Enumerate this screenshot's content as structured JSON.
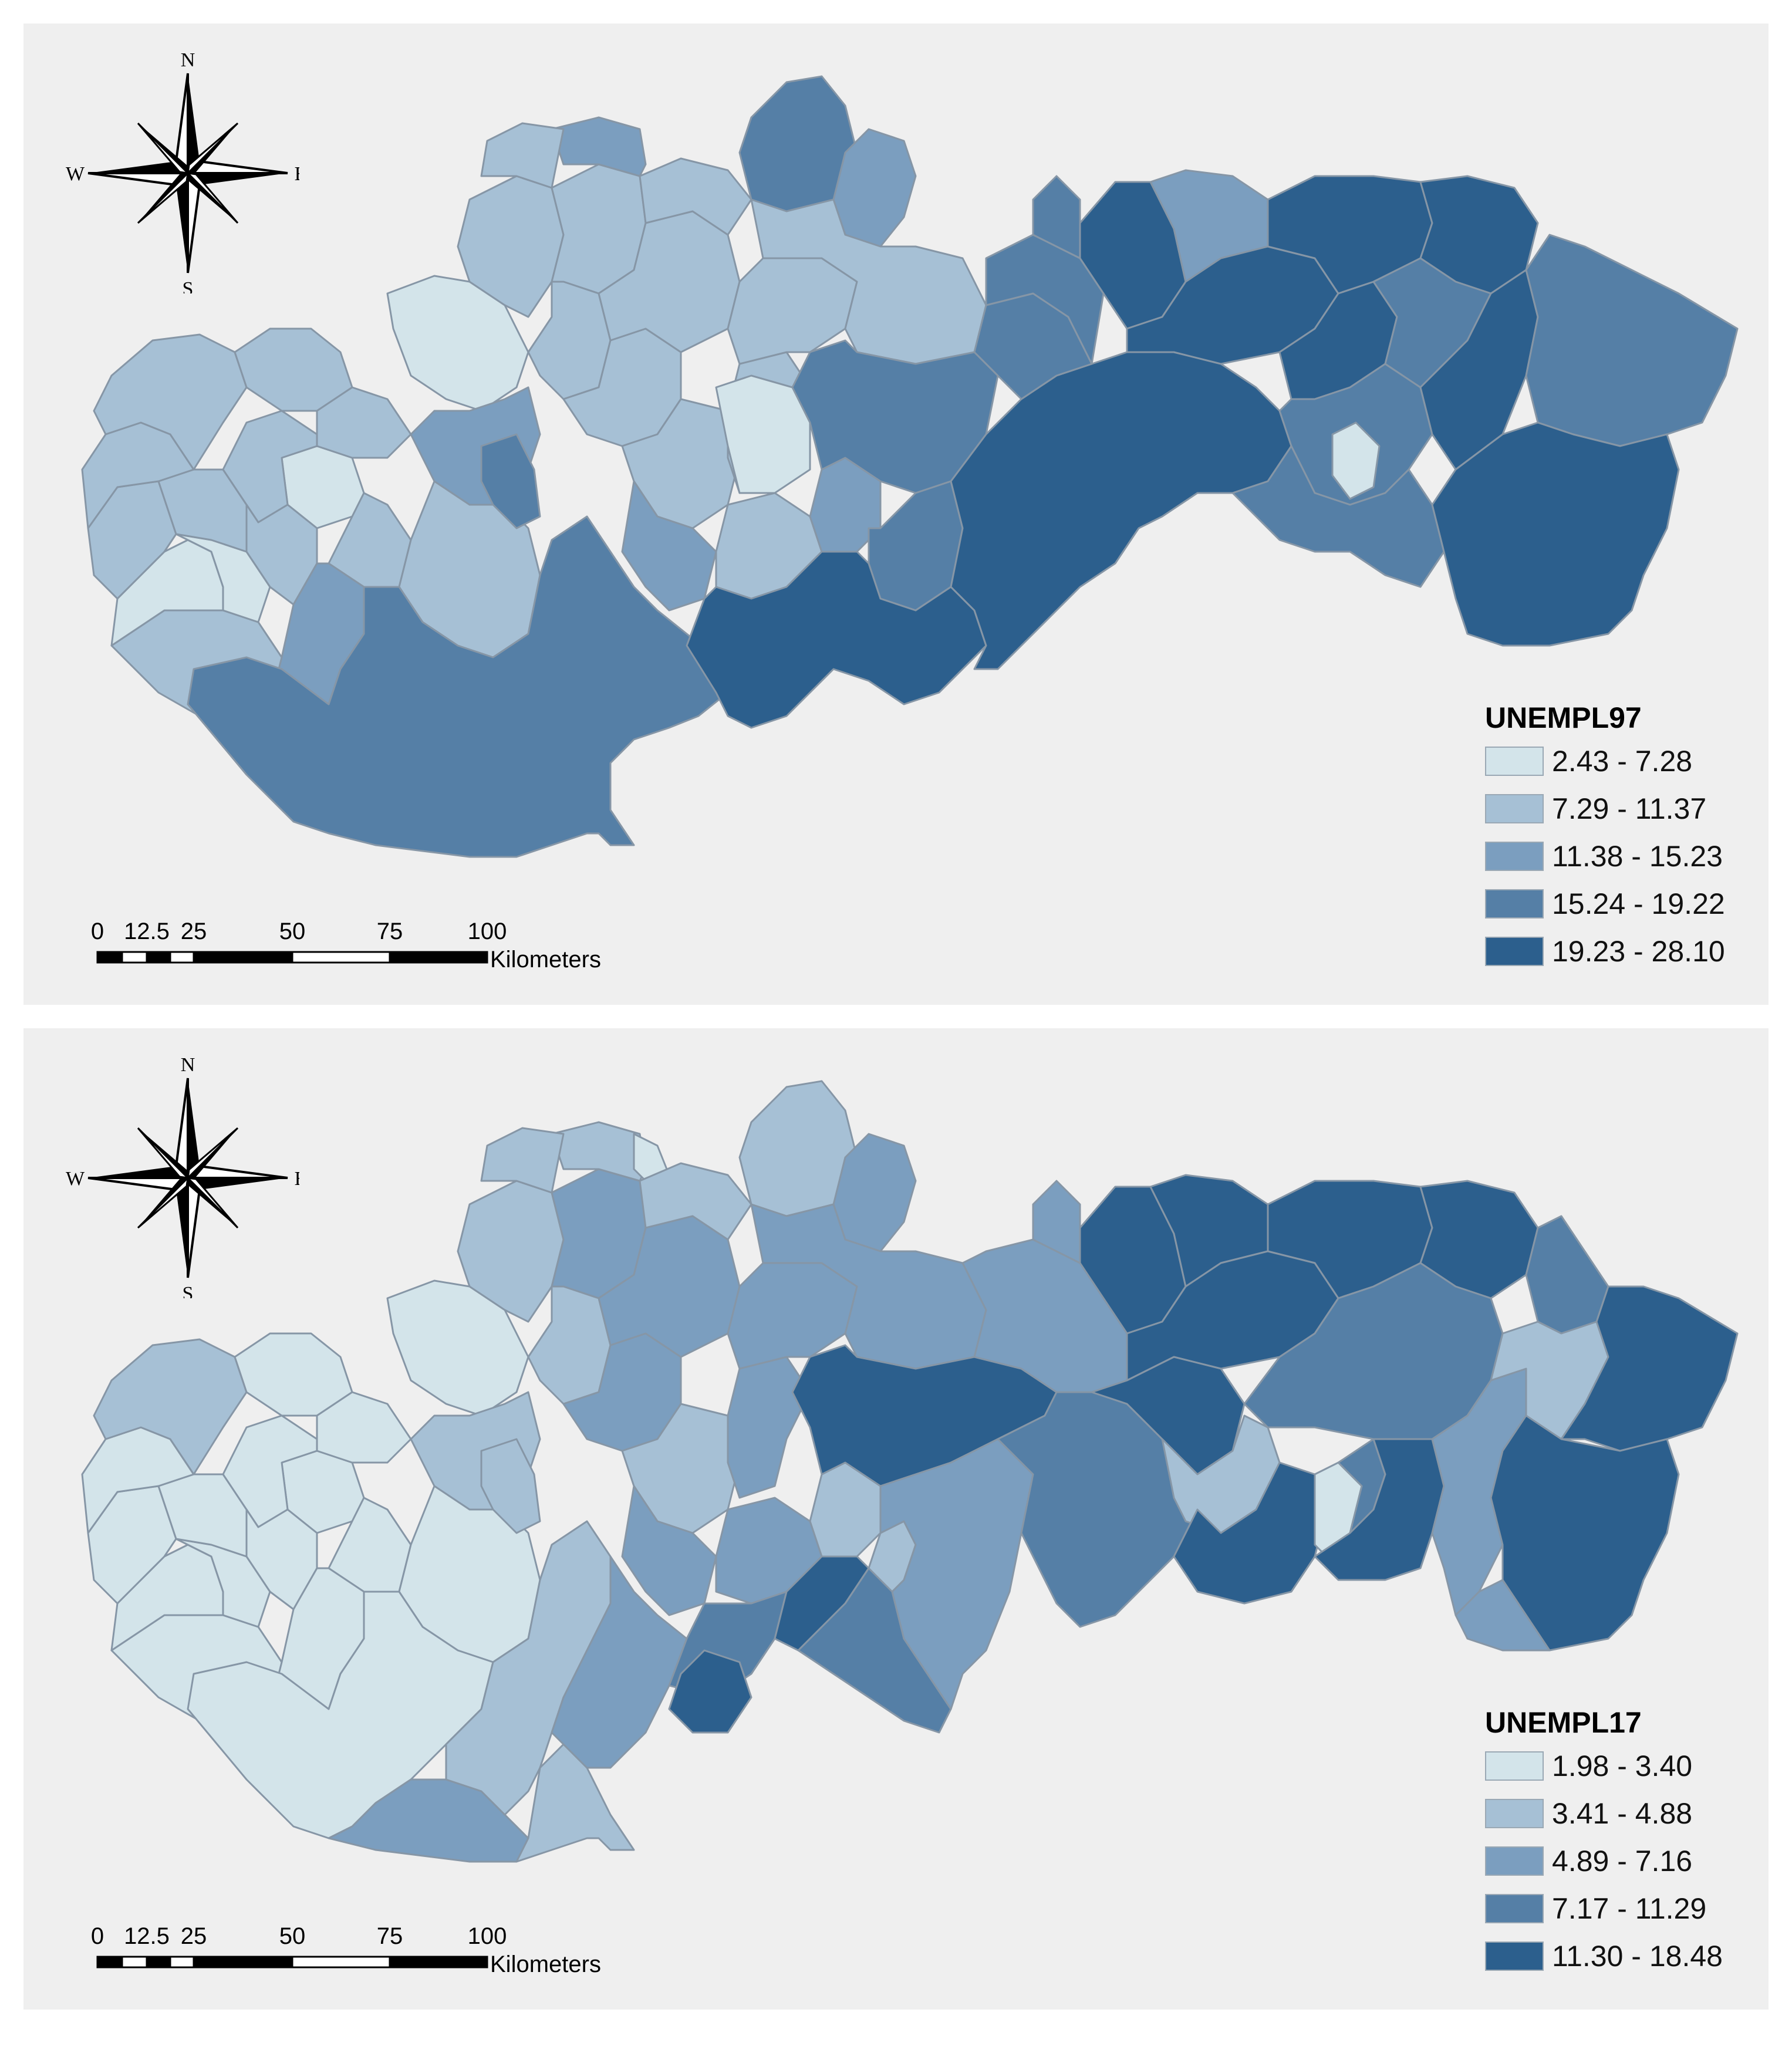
{
  "maps": [
    {
      "id": "unempl97",
      "legend": {
        "title": "UNEMPL97",
        "classes": [
          {
            "label": "2.43 - 7.28",
            "color": "#d3e4ea"
          },
          {
            "label": "7.29 - 11.37",
            "color": "#a6c0d5"
          },
          {
            "label": "11.38 - 15.23",
            "color": "#7b9ebf"
          },
          {
            "label": "15.24 - 19.22",
            "color": "#557fa6"
          },
          {
            "label": "19.23 - 28.10",
            "color": "#2c5f8d"
          }
        ]
      }
    },
    {
      "id": "unempl17",
      "legend": {
        "title": "UNEMPL17",
        "classes": [
          {
            "label": "1.98 - 3.40",
            "color": "#d3e4ea"
          },
          {
            "label": "3.41 - 4.88",
            "color": "#a6c0d5"
          },
          {
            "label": "4.89 - 7.16",
            "color": "#7b9ebf"
          },
          {
            "label": "7.17 - 11.29",
            "color": "#557fa6"
          },
          {
            "label": "11.30 - 18.48",
            "color": "#2c5f8d"
          }
        ]
      }
    }
  ],
  "compass": {
    "north": "N",
    "south": "S",
    "east": "E",
    "west": "W"
  },
  "scalebar": {
    "ticks": [
      {
        "label": "0",
        "value": 0
      },
      {
        "label": "12.5",
        "value": 12.5
      },
      {
        "label": "25",
        "value": 25
      },
      {
        "label": "50",
        "value": 50
      },
      {
        "label": "75",
        "value": 75
      },
      {
        "label": "100",
        "value": 100
      }
    ],
    "unit": "Kilometers"
  }
}
